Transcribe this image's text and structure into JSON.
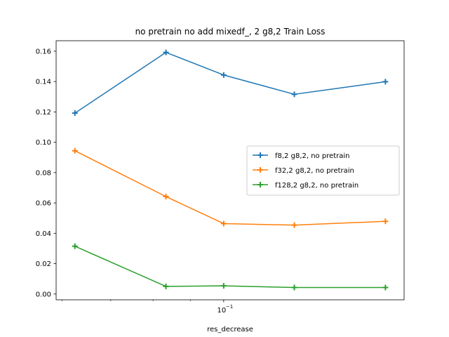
{
  "chart_data": {
    "type": "line",
    "title": "no pretrain no add mixedf_, 2 g8,2 Train Loss",
    "xlabel": "res_decrease",
    "ylabel": "",
    "xscale": "log",
    "x": [
      0.0625,
      0.08333,
      0.1,
      0.125,
      0.16667
    ],
    "xlim": [
      0.0589,
      0.1768
    ],
    "ylim": [
      -0.0038,
      0.1669
    ],
    "y_ticks": [
      0.0,
      0.02,
      0.04,
      0.06,
      0.08,
      0.1,
      0.12,
      0.14,
      0.16
    ],
    "y_tick_labels": [
      "0.00",
      "0.02",
      "0.04",
      "0.06",
      "0.08",
      "0.10",
      "0.12",
      "0.14",
      "0.16"
    ],
    "x_major_tick_label": {
      "base": "10",
      "exponent": "−1"
    },
    "grid": false,
    "legend_position": "center-right",
    "series": [
      {
        "name": "f8,2 g8,2, no pretrain",
        "color": "#1f77b4",
        "values": [
          0.1192,
          0.1592,
          0.1443,
          0.1316,
          0.1399
        ]
      },
      {
        "name": "f32,2 g8,2, no pretrain",
        "color": "#ff7f0e",
        "values": [
          0.0944,
          0.0642,
          0.0464,
          0.0454,
          0.0479
        ]
      },
      {
        "name": "f128,2 g8,2, no pretrain",
        "color": "#2ca02c",
        "values": [
          0.0315,
          0.005,
          0.0054,
          0.0043,
          0.0043
        ]
      }
    ]
  }
}
